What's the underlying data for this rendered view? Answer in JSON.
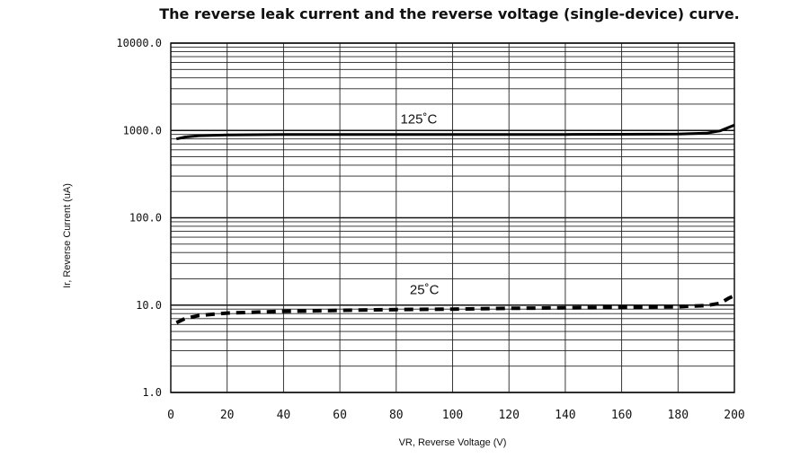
{
  "chart_data": {
    "type": "line",
    "title": "The reverse leak current and the reverse voltage (single-device) curve.",
    "xlabel": "VR, Reverse Voltage (V)",
    "ylabel": "Ir, Reverse Current (uA)",
    "xlim": [
      0,
      200
    ],
    "ylim": [
      1,
      10000
    ],
    "yscale": "log",
    "grid": true,
    "x_tick_labels": [
      "0",
      "20",
      "40",
      "60",
      "80",
      "100",
      "120",
      "140",
      "160",
      "180",
      "200"
    ],
    "y_tick_labels": [
      "1.0",
      "10.0",
      "100.0",
      "1000.0",
      "10000.0"
    ],
    "series": [
      {
        "name": "125˚C",
        "style": "solid",
        "x": [
          2,
          5,
          10,
          20,
          40,
          60,
          80,
          100,
          120,
          140,
          160,
          180,
          190,
          195,
          200
        ],
        "y": [
          800,
          840,
          870,
          890,
          900,
          900,
          900,
          900,
          900,
          900,
          905,
          910,
          930,
          990,
          1150
        ]
      },
      {
        "name": "25˚C",
        "style": "dashed",
        "x": [
          2,
          5,
          10,
          20,
          40,
          60,
          80,
          100,
          120,
          140,
          160,
          180,
          190,
          195,
          198,
          200
        ],
        "y": [
          6.3,
          7.0,
          7.6,
          8.1,
          8.5,
          8.7,
          8.9,
          9.0,
          9.2,
          9.3,
          9.4,
          9.6,
          9.9,
          10.5,
          12.0,
          12.8
        ]
      }
    ]
  }
}
